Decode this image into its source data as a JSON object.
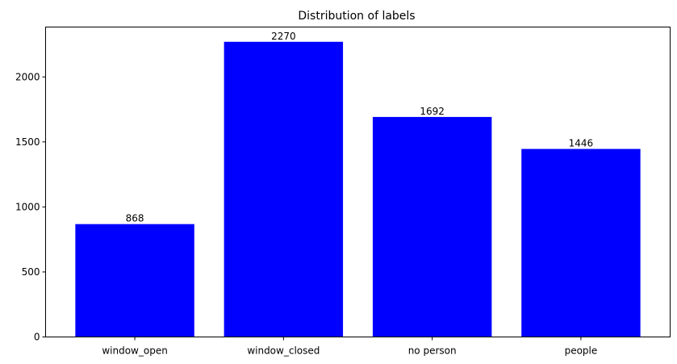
{
  "chart_data": {
    "type": "bar",
    "title": "Distribution of labels",
    "xlabel": "",
    "ylabel": "",
    "categories": [
      "window_open",
      "window_closed",
      "no person",
      "people"
    ],
    "values": [
      868,
      2270,
      1692,
      1446
    ],
    "data_labels": [
      "868",
      "2270",
      "1692",
      "1446"
    ],
    "yticks": [
      0,
      500,
      1000,
      1500,
      2000
    ],
    "ylim": [
      0,
      2383.5
    ],
    "grid": false,
    "legend": "none",
    "bar_color": "#0000ff"
  }
}
